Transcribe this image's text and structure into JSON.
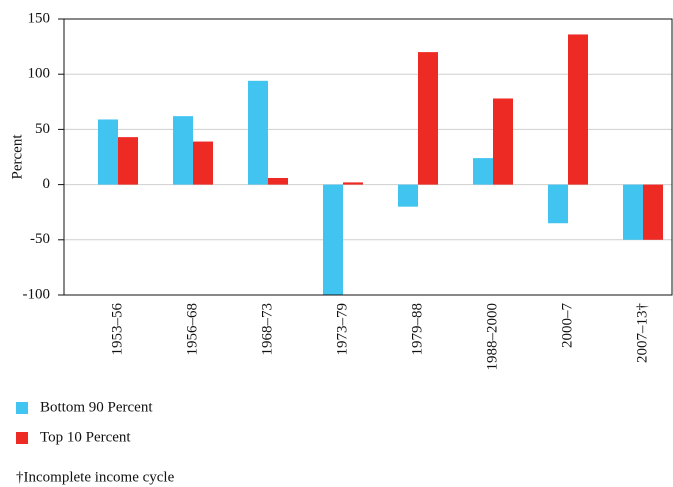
{
  "chart_data": {
    "type": "bar",
    "ylabel": "Percent",
    "categories": [
      "1953–56",
      "1956–68",
      "1968–73",
      "1973–79",
      "1979–88",
      "1988–2000",
      "2000–7",
      "2007–13†"
    ],
    "series": [
      {
        "name": "Bottom 90 Percent",
        "color": "#41c4ef",
        "values": [
          59,
          62,
          94,
          -100,
          -20,
          24,
          -35,
          -50
        ]
      },
      {
        "name": "Top 10 Percent",
        "color": "#ee2a24",
        "values": [
          43,
          39,
          6,
          2,
          120,
          78,
          136,
          -50
        ]
      }
    ],
    "ylim": [
      -100,
      150
    ],
    "yticks": [
      -100,
      -50,
      0,
      50,
      100,
      150
    ],
    "grid": true,
    "note": "†Incomplete income cycle"
  }
}
